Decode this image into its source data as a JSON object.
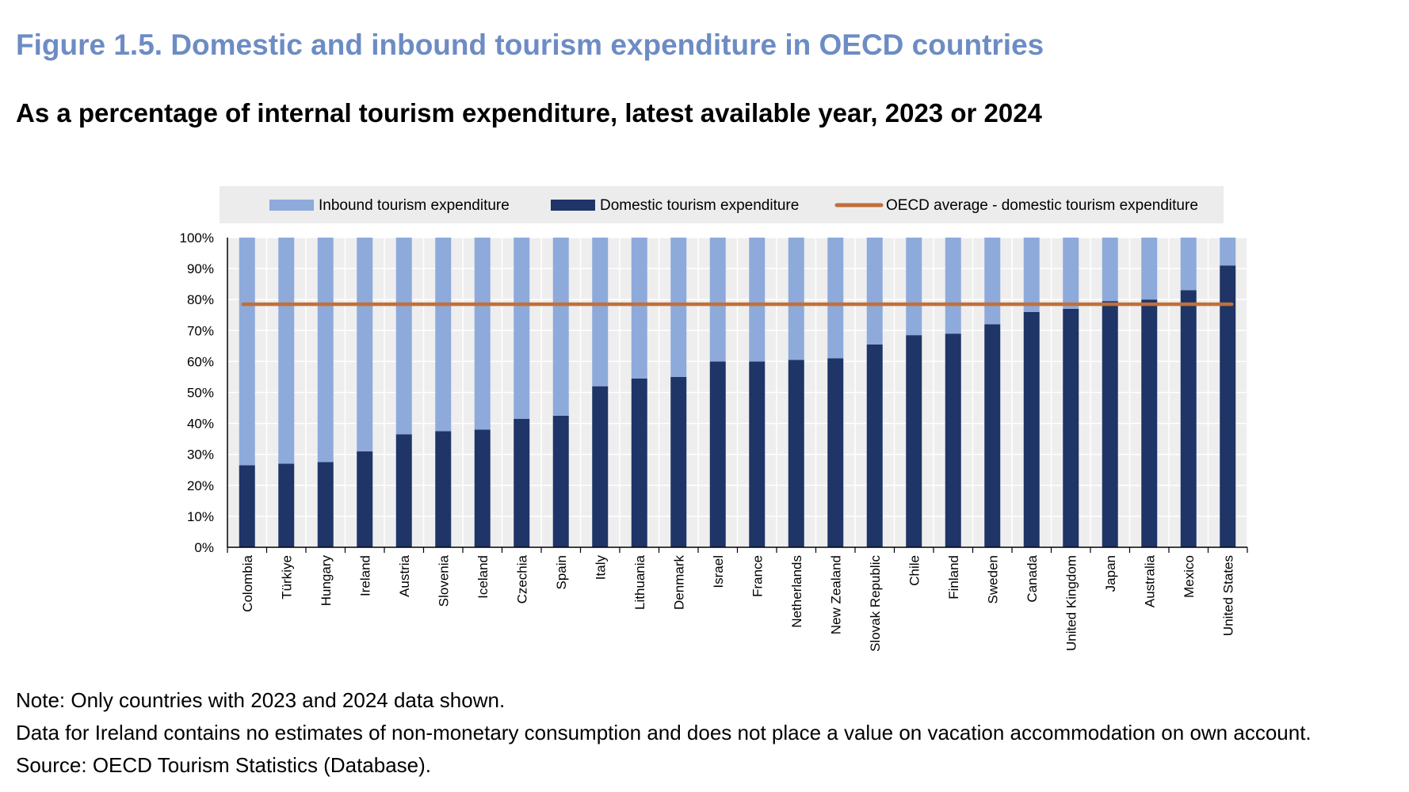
{
  "figure": {
    "title": "Figure 1.5. Domestic and inbound tourism expenditure in OECD countries",
    "subtitle": "As a percentage of internal tourism expenditure, latest available year, 2023 or 2024"
  },
  "notes": {
    "note": "Note: Only countries with 2023 and 2024 data shown.",
    "ireland": "Data for Ireland contains no estimates of non-monetary consumption and does not place a value on vacation accommodation on own account.",
    "source": "Source: OECD Tourism Statistics (Database)."
  },
  "chart_data": {
    "type": "bar",
    "stacked": true,
    "categories": [
      "Colombia",
      "Türkiye",
      "Hungary",
      "Ireland",
      "Austria",
      "Slovenia",
      "Iceland",
      "Czechia",
      "Spain",
      "Italy",
      "Lithuania",
      "Denmark",
      "Israel",
      "France",
      "Netherlands",
      "New Zealand",
      "Slovak Republic",
      "Chile",
      "Finland",
      "Sweden",
      "Canada",
      "United Kingdom",
      "Japan",
      "Australia",
      "Mexico",
      "United States"
    ],
    "series": [
      {
        "name": "Inbound tourism expenditure",
        "values": [
          73.5,
          73,
          72.5,
          69,
          63.5,
          62.5,
          62,
          58.5,
          57.5,
          48,
          45.5,
          45,
          40,
          40,
          39.5,
          39,
          34.5,
          31.5,
          31,
          28,
          24,
          23,
          20.5,
          20,
          17,
          9
        ],
        "color": "#8eaadb"
      },
      {
        "name": "Domestic tourism expenditure",
        "values": [
          26.5,
          27,
          27.5,
          31,
          36.5,
          37.5,
          38,
          41.5,
          42.5,
          52,
          54.5,
          55,
          60,
          60,
          60.5,
          61,
          65.5,
          68.5,
          69,
          72,
          76,
          77,
          79.5,
          80,
          83,
          91
        ],
        "color": "#1f3467"
      }
    ],
    "reference_line": {
      "name": "OECD average - domestic tourism expenditure",
      "value": 78.5,
      "color": "#c0703b"
    },
    "ylim": [
      0,
      100
    ],
    "yticks": [
      "0%",
      "10%",
      "20%",
      "30%",
      "40%",
      "50%",
      "60%",
      "70%",
      "80%",
      "90%",
      "100%"
    ],
    "xlabel": "",
    "ylabel": "",
    "grid": true,
    "legend_position": "top"
  }
}
